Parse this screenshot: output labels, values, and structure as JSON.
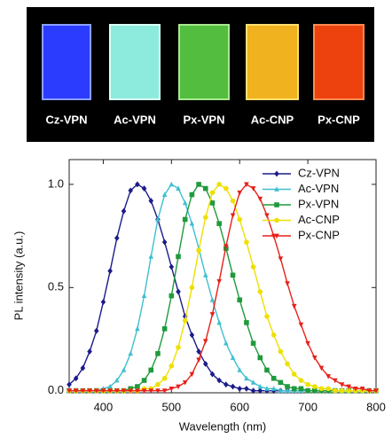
{
  "photo": {
    "labels": [
      "Cz-VPN",
      "Ac-VPN",
      "Px-VPN",
      "Ac-CNP",
      "Px-CNP"
    ]
  },
  "chart_data": {
    "type": "line",
    "xlabel": "Wavelength (nm)",
    "ylabel": "PL intensity (a.u.)",
    "x": [
      350,
      360,
      370,
      380,
      390,
      400,
      410,
      420,
      430,
      440,
      450,
      460,
      470,
      480,
      490,
      500,
      510,
      520,
      530,
      540,
      550,
      560,
      570,
      580,
      590,
      600,
      610,
      620,
      630,
      640,
      650,
      660,
      670,
      680,
      690,
      700,
      710,
      720,
      730,
      740,
      750,
      760,
      770,
      780,
      790,
      800
    ],
    "series": [
      {
        "name": "Cz-VPN",
        "color": "#1c1c8a",
        "marker": "diamond",
        "values": [
          0.03,
          0.06,
          0.11,
          0.19,
          0.29,
          0.43,
          0.58,
          0.74,
          0.87,
          0.97,
          1.0,
          0.98,
          0.92,
          0.83,
          0.72,
          0.6,
          0.48,
          0.36,
          0.27,
          0.19,
          0.13,
          0.08,
          0.05,
          0.03,
          0.02,
          0.01,
          0.01,
          0,
          0,
          0,
          0,
          0,
          0,
          0,
          0,
          0,
          0,
          0,
          0,
          0,
          0,
          0,
          0,
          0,
          0,
          0
        ]
      },
      {
        "name": "Ac-VPN",
        "color": "#3fbfd0",
        "marker": "triangle-up",
        "values": [
          0,
          0,
          0,
          0,
          0,
          0.01,
          0.02,
          0.05,
          0.1,
          0.18,
          0.3,
          0.46,
          0.65,
          0.83,
          0.95,
          1.0,
          0.98,
          0.91,
          0.81,
          0.69,
          0.56,
          0.44,
          0.33,
          0.23,
          0.16,
          0.1,
          0.06,
          0.04,
          0.02,
          0.01,
          0.01,
          0,
          0,
          0,
          0,
          0,
          0,
          0,
          0,
          0,
          0,
          0,
          0,
          0,
          0,
          0
        ]
      },
      {
        "name": "Px-VPN",
        "color": "#1f9a3c",
        "marker": "square",
        "values": [
          0,
          0,
          0,
          0,
          0,
          0,
          0,
          0,
          0,
          0.01,
          0.02,
          0.05,
          0.1,
          0.18,
          0.3,
          0.46,
          0.65,
          0.83,
          0.95,
          1.0,
          0.98,
          0.91,
          0.81,
          0.69,
          0.56,
          0.44,
          0.33,
          0.23,
          0.16,
          0.1,
          0.06,
          0.04,
          0.02,
          0.01,
          0.01,
          0,
          0,
          0,
          0,
          0,
          0,
          0,
          0,
          0,
          0,
          0
        ]
      },
      {
        "name": "Ac-CNP",
        "color": "#eee000",
        "marker": "circle",
        "values": [
          0,
          0,
          0,
          0,
          0,
          0,
          0,
          0,
          0,
          0,
          0,
          0.01,
          0.01,
          0.03,
          0.06,
          0.12,
          0.21,
          0.34,
          0.5,
          0.68,
          0.84,
          0.96,
          1.0,
          0.98,
          0.92,
          0.83,
          0.72,
          0.6,
          0.48,
          0.36,
          0.27,
          0.19,
          0.13,
          0.08,
          0.05,
          0.03,
          0.02,
          0.01,
          0.01,
          0,
          0,
          0,
          0,
          0,
          0,
          0
        ]
      },
      {
        "name": "Px-CNP",
        "color": "#e8201a",
        "marker": "triangle-down",
        "values": [
          0,
          0,
          0,
          0,
          0,
          0,
          0,
          0,
          0,
          0,
          0,
          0,
          0,
          0,
          0,
          0.01,
          0.02,
          0.04,
          0.08,
          0.15,
          0.24,
          0.37,
          0.53,
          0.7,
          0.85,
          0.96,
          1.0,
          0.98,
          0.93,
          0.85,
          0.75,
          0.64,
          0.52,
          0.41,
          0.32,
          0.23,
          0.16,
          0.11,
          0.07,
          0.05,
          0.03,
          0.02,
          0.01,
          0.01,
          0,
          0
        ]
      }
    ],
    "xlim": [
      350,
      800
    ],
    "xticks": [
      400,
      500,
      600,
      700,
      800
    ],
    "ylim": [
      -0.01,
      1.12
    ],
    "yticks": [
      {
        "value": 0,
        "label": "0.0"
      },
      {
        "value": 0.5,
        "label": "0.5"
      },
      {
        "value": 1,
        "label": "1.0"
      }
    ],
    "legend": "upper right",
    "grid": false
  }
}
